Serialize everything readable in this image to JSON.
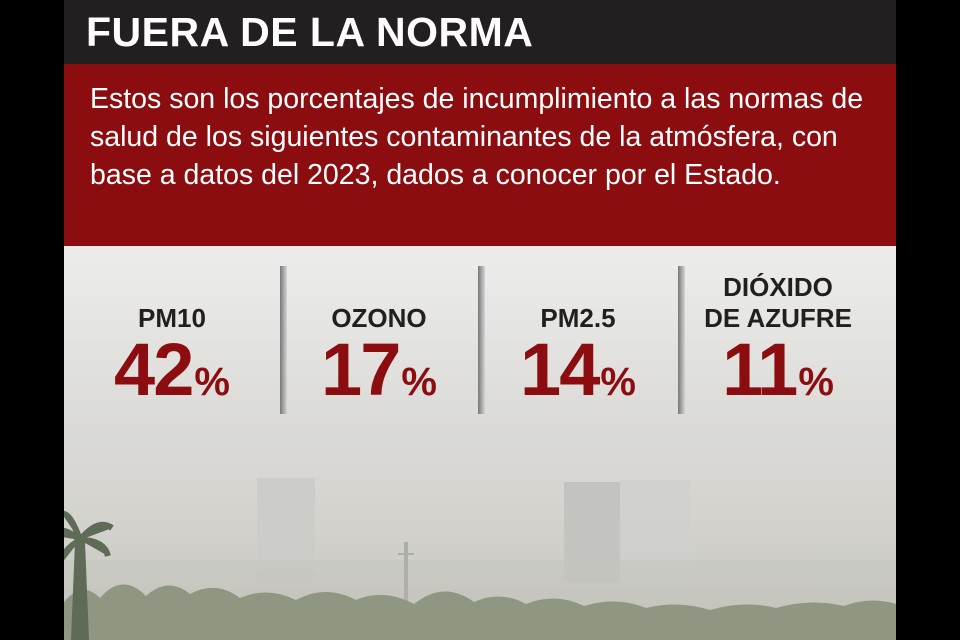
{
  "title": "FUERA DE LA NORMA",
  "intro": "Estos son los porcentajes de incumplimiento a las normas de salud de los siguientes contaminantes de la atmósfera, con base a datos del 2023, dados a conocer por el Estado.",
  "stats": [
    {
      "label": "PM10",
      "value": "42",
      "unit": "%"
    },
    {
      "label": "OZONO",
      "value": "17",
      "unit": "%"
    },
    {
      "label": "PM2.5",
      "value": "14",
      "unit": "%"
    },
    {
      "label": "DIÓXIDO\nDE AZUFRE",
      "value": "11",
      "unit": "%"
    }
  ],
  "colors": {
    "accent": "#8b0d10",
    "header": "#231f20"
  }
}
